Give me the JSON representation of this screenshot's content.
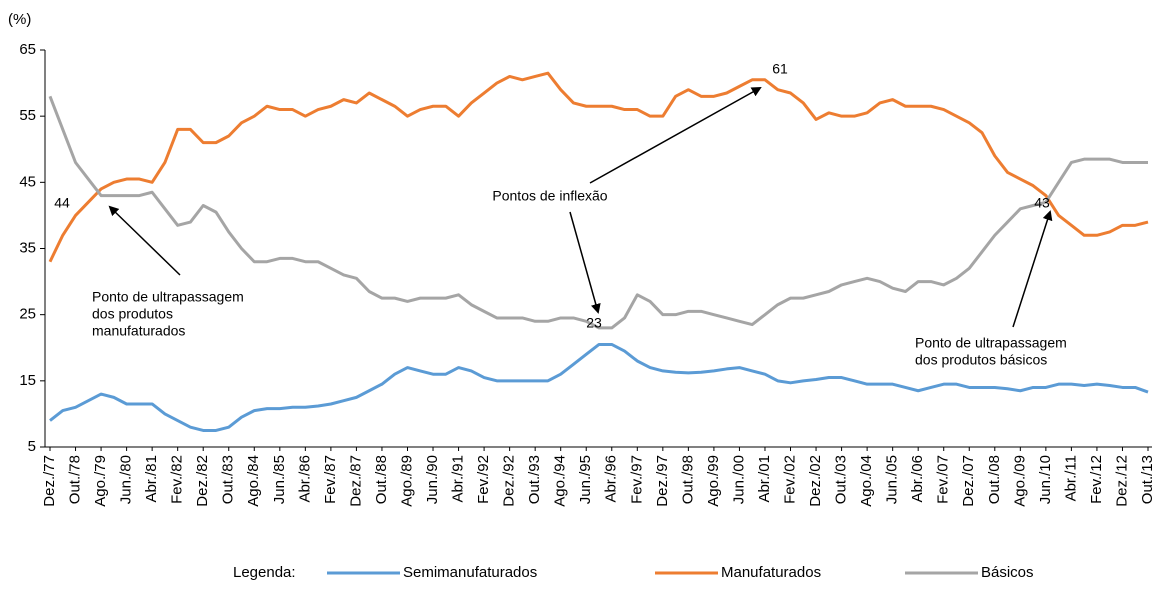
{
  "chart_data": {
    "type": "line",
    "y_unit": "(%)",
    "categories": [
      "Dez./77",
      null,
      "Out./78",
      null,
      "Ago./79",
      null,
      "Jun./80",
      null,
      "Abr./81",
      null,
      "Fev./82",
      null,
      "Dez./82",
      null,
      "Out./83",
      null,
      "Ago./84",
      null,
      "Jun./85",
      null,
      "Abr./86",
      null,
      "Fev./87",
      null,
      "Dez./87",
      null,
      "Out./88",
      null,
      "Ago./89",
      null,
      "Jun./90",
      null,
      "Abr./91",
      null,
      "Fev./92",
      null,
      "Dez./92",
      null,
      "Out./93",
      null,
      "Ago./94",
      null,
      "Jun./95",
      null,
      "Abr./96",
      null,
      "Fev./97",
      null,
      "Dez./97",
      null,
      "Out./98",
      null,
      "Ago./99",
      null,
      "Jun./00",
      null,
      "Abr./01",
      null,
      "Fev./02",
      null,
      "Dez./02",
      null,
      "Out./03",
      null,
      "Ago./04",
      null,
      "Jun./05",
      null,
      "Abr./06",
      null,
      "Fev./07",
      null,
      "Dez./07",
      null,
      "Out./08",
      null,
      "Ago./09",
      null,
      "Jun./10",
      null,
      "Abr./11",
      null,
      "Fev./12",
      null,
      "Dez./12",
      null,
      "Out./13"
    ],
    "series": [
      {
        "name": "Semimanufaturados",
        "color": "#5b9bd5",
        "values": [
          9,
          10.5,
          11,
          12,
          13,
          12.5,
          11.5,
          11.5,
          11.5,
          10,
          9,
          8,
          7.5,
          7.5,
          8,
          9.5,
          10.5,
          10.8,
          10.8,
          11,
          11,
          11.2,
          11.5,
          12,
          12.5,
          13.5,
          14.5,
          16,
          17,
          16.5,
          16,
          16,
          17,
          16.5,
          15.5,
          15,
          15,
          15,
          15,
          15,
          16,
          17.5,
          19,
          20.5,
          20.5,
          19.5,
          18,
          17,
          16.5,
          16.3,
          16.2,
          16.3,
          16.5,
          16.8,
          17,
          16.5,
          16,
          15,
          14.7,
          15,
          15.2,
          15.5,
          15.5,
          15,
          14.5,
          14.5,
          14.5,
          14,
          13.5,
          14,
          14.5,
          14.5,
          14,
          14,
          14,
          13.8,
          13.5,
          14,
          14,
          14.5,
          14.5,
          14.3,
          14.5,
          14.3,
          14,
          14,
          13.3
        ]
      },
      {
        "name": "Manufaturados",
        "color": "#ed7d31",
        "values": [
          33,
          37,
          40,
          42,
          44,
          45,
          45.5,
          45.5,
          45,
          48,
          53,
          53,
          51,
          51,
          52,
          54,
          55,
          56.5,
          56,
          56,
          55,
          56,
          56.5,
          57.5,
          57,
          58.5,
          57.5,
          56.5,
          55,
          56,
          56.5,
          56.5,
          55,
          57,
          58.5,
          60,
          61,
          60.5,
          61,
          61.5,
          59,
          57,
          56.5,
          56.5,
          56.5,
          56,
          56,
          55,
          55,
          58,
          59,
          58,
          58,
          58.5,
          59.5,
          60.5,
          60.5,
          59,
          58.5,
          57,
          54.5,
          55.5,
          55,
          55,
          55.5,
          57,
          57.5,
          56.5,
          56.5,
          56.5,
          56,
          55,
          54,
          52.5,
          49,
          46.5,
          45.5,
          44.5,
          43,
          40,
          38.5,
          37,
          37,
          37.5,
          38.5,
          38.5,
          39
        ]
      },
      {
        "name": "Básicos",
        "color": "#a5a5a5",
        "values": [
          58,
          53,
          48,
          45.5,
          43,
          43,
          43,
          43,
          43.5,
          41,
          38.5,
          39,
          41.5,
          40.5,
          37.5,
          35,
          33,
          33,
          33.5,
          33.5,
          33,
          33,
          32,
          31,
          30.5,
          28.5,
          27.5,
          27.5,
          27,
          27.5,
          27.5,
          27.5,
          28,
          26.5,
          25.5,
          24.5,
          24.5,
          24.5,
          24,
          24,
          24.5,
          24.5,
          24,
          23,
          23,
          24.5,
          28,
          27,
          25,
          25,
          25.5,
          25.5,
          25,
          24.5,
          24,
          23.5,
          25,
          26.5,
          27.5,
          27.5,
          28,
          28.5,
          29.5,
          30,
          30.5,
          30,
          29,
          28.5,
          30,
          30,
          29.5,
          30.5,
          32,
          34.5,
          37,
          39,
          41,
          41.5,
          42,
          45,
          48,
          48.5,
          48.5,
          48.5,
          48,
          48,
          48
        ]
      }
    ],
    "ylim": [
      5,
      65
    ],
    "yticks": [
      5,
      15,
      25,
      35,
      45,
      55,
      65
    ],
    "annotations": [
      {
        "text": "44"
      },
      {
        "text": "61"
      },
      {
        "text": "23"
      },
      {
        "text": "43"
      },
      {
        "text": "Pontos de inflexão"
      },
      {
        "lines": [
          "Ponto de ultrapassagem",
          "dos produtos",
          "manufaturados"
        ]
      },
      {
        "lines": [
          "Ponto de ultrapassagem",
          "dos produtos básicos"
        ]
      }
    ],
    "legend_title": "Legenda:"
  }
}
